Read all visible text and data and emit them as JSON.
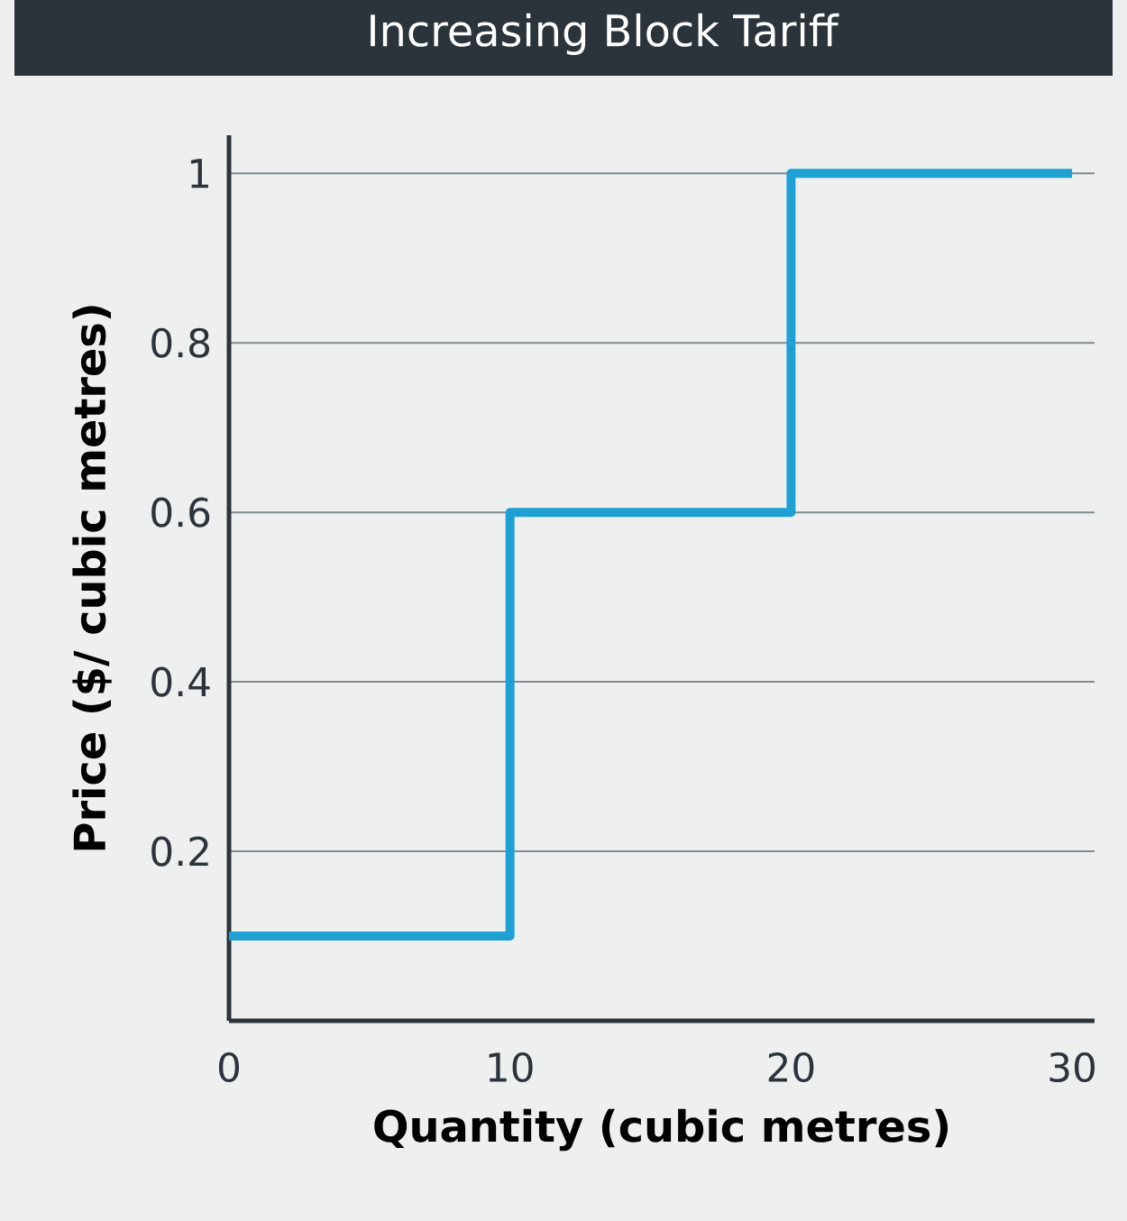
{
  "chart_data": {
    "type": "step",
    "title": "Increasing Block Tariff",
    "xlabel": "Quantity (cubic metres)",
    "ylabel": "Price ($/ cubic metres)",
    "x": [
      0,
      10,
      20,
      30
    ],
    "series": [
      {
        "color": "#1fa0d5",
        "values": [
          0.1,
          0.6,
          1,
          1
        ]
      }
    ],
    "xlim": [
      0,
      30.8
    ],
    "ylim": [
      0,
      1.045
    ],
    "xticks": [
      0,
      10,
      20,
      30
    ],
    "yticks": [
      0.2,
      0.4,
      0.6,
      0.8,
      1
    ],
    "grid": "y",
    "marker": "none",
    "line_style": "solid"
  }
}
